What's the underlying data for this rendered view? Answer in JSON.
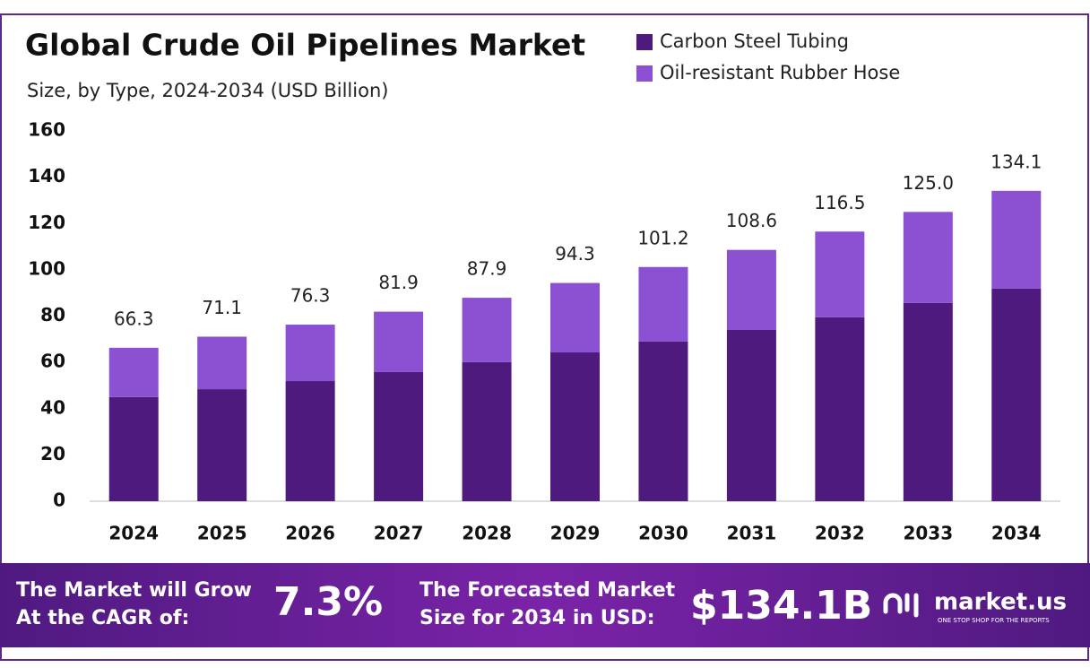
{
  "chart_data": {
    "type": "stacked_bar",
    "title": "Global Crude Oil Pipelines Market",
    "subtitle": "Size, by Type, 2024-2034 (USD Billion)",
    "categories": [
      "2024",
      "2025",
      "2026",
      "2027",
      "2028",
      "2029",
      "2030",
      "2031",
      "2032",
      "2033",
      "2034"
    ],
    "series": [
      {
        "name": "Carbon Steel Tubing",
        "color": "#4e1a7e",
        "values": [
          45.0,
          48.4,
          51.9,
          55.8,
          60.1,
          64.3,
          69.0,
          74.0,
          79.5,
          85.7,
          91.9
        ]
      },
      {
        "name": "Oil-resistant Rubber Hose",
        "color": "#8c50d2",
        "values": [
          21.3,
          22.7,
          24.4,
          26.1,
          27.8,
          30.0,
          32.2,
          34.6,
          37.0,
          39.3,
          42.2
        ]
      }
    ],
    "totals": [
      66.3,
      71.1,
      76.3,
      81.9,
      87.9,
      94.3,
      101.2,
      108.6,
      116.5,
      {
        "value": 125.0,
        "label": "125.0"
      },
      134.1
    ],
    "ylim": [
      0,
      160
    ],
    "yticks": [
      0,
      20,
      40,
      60,
      80,
      100,
      120,
      140,
      160
    ],
    "grid": false,
    "legend": "top-right"
  },
  "footer": {
    "cagr_lines": [
      "The Market will Grow",
      "At the CAGR of:"
    ],
    "cagr": "7.3%",
    "forecast_lines": [
      "The Forecasted Market",
      "Size for 2034 in USD:"
    ],
    "forecast": "$134.1B",
    "brand": "market.us",
    "tagline": "ONE STOP SHOP FOR THE REPORTS"
  }
}
